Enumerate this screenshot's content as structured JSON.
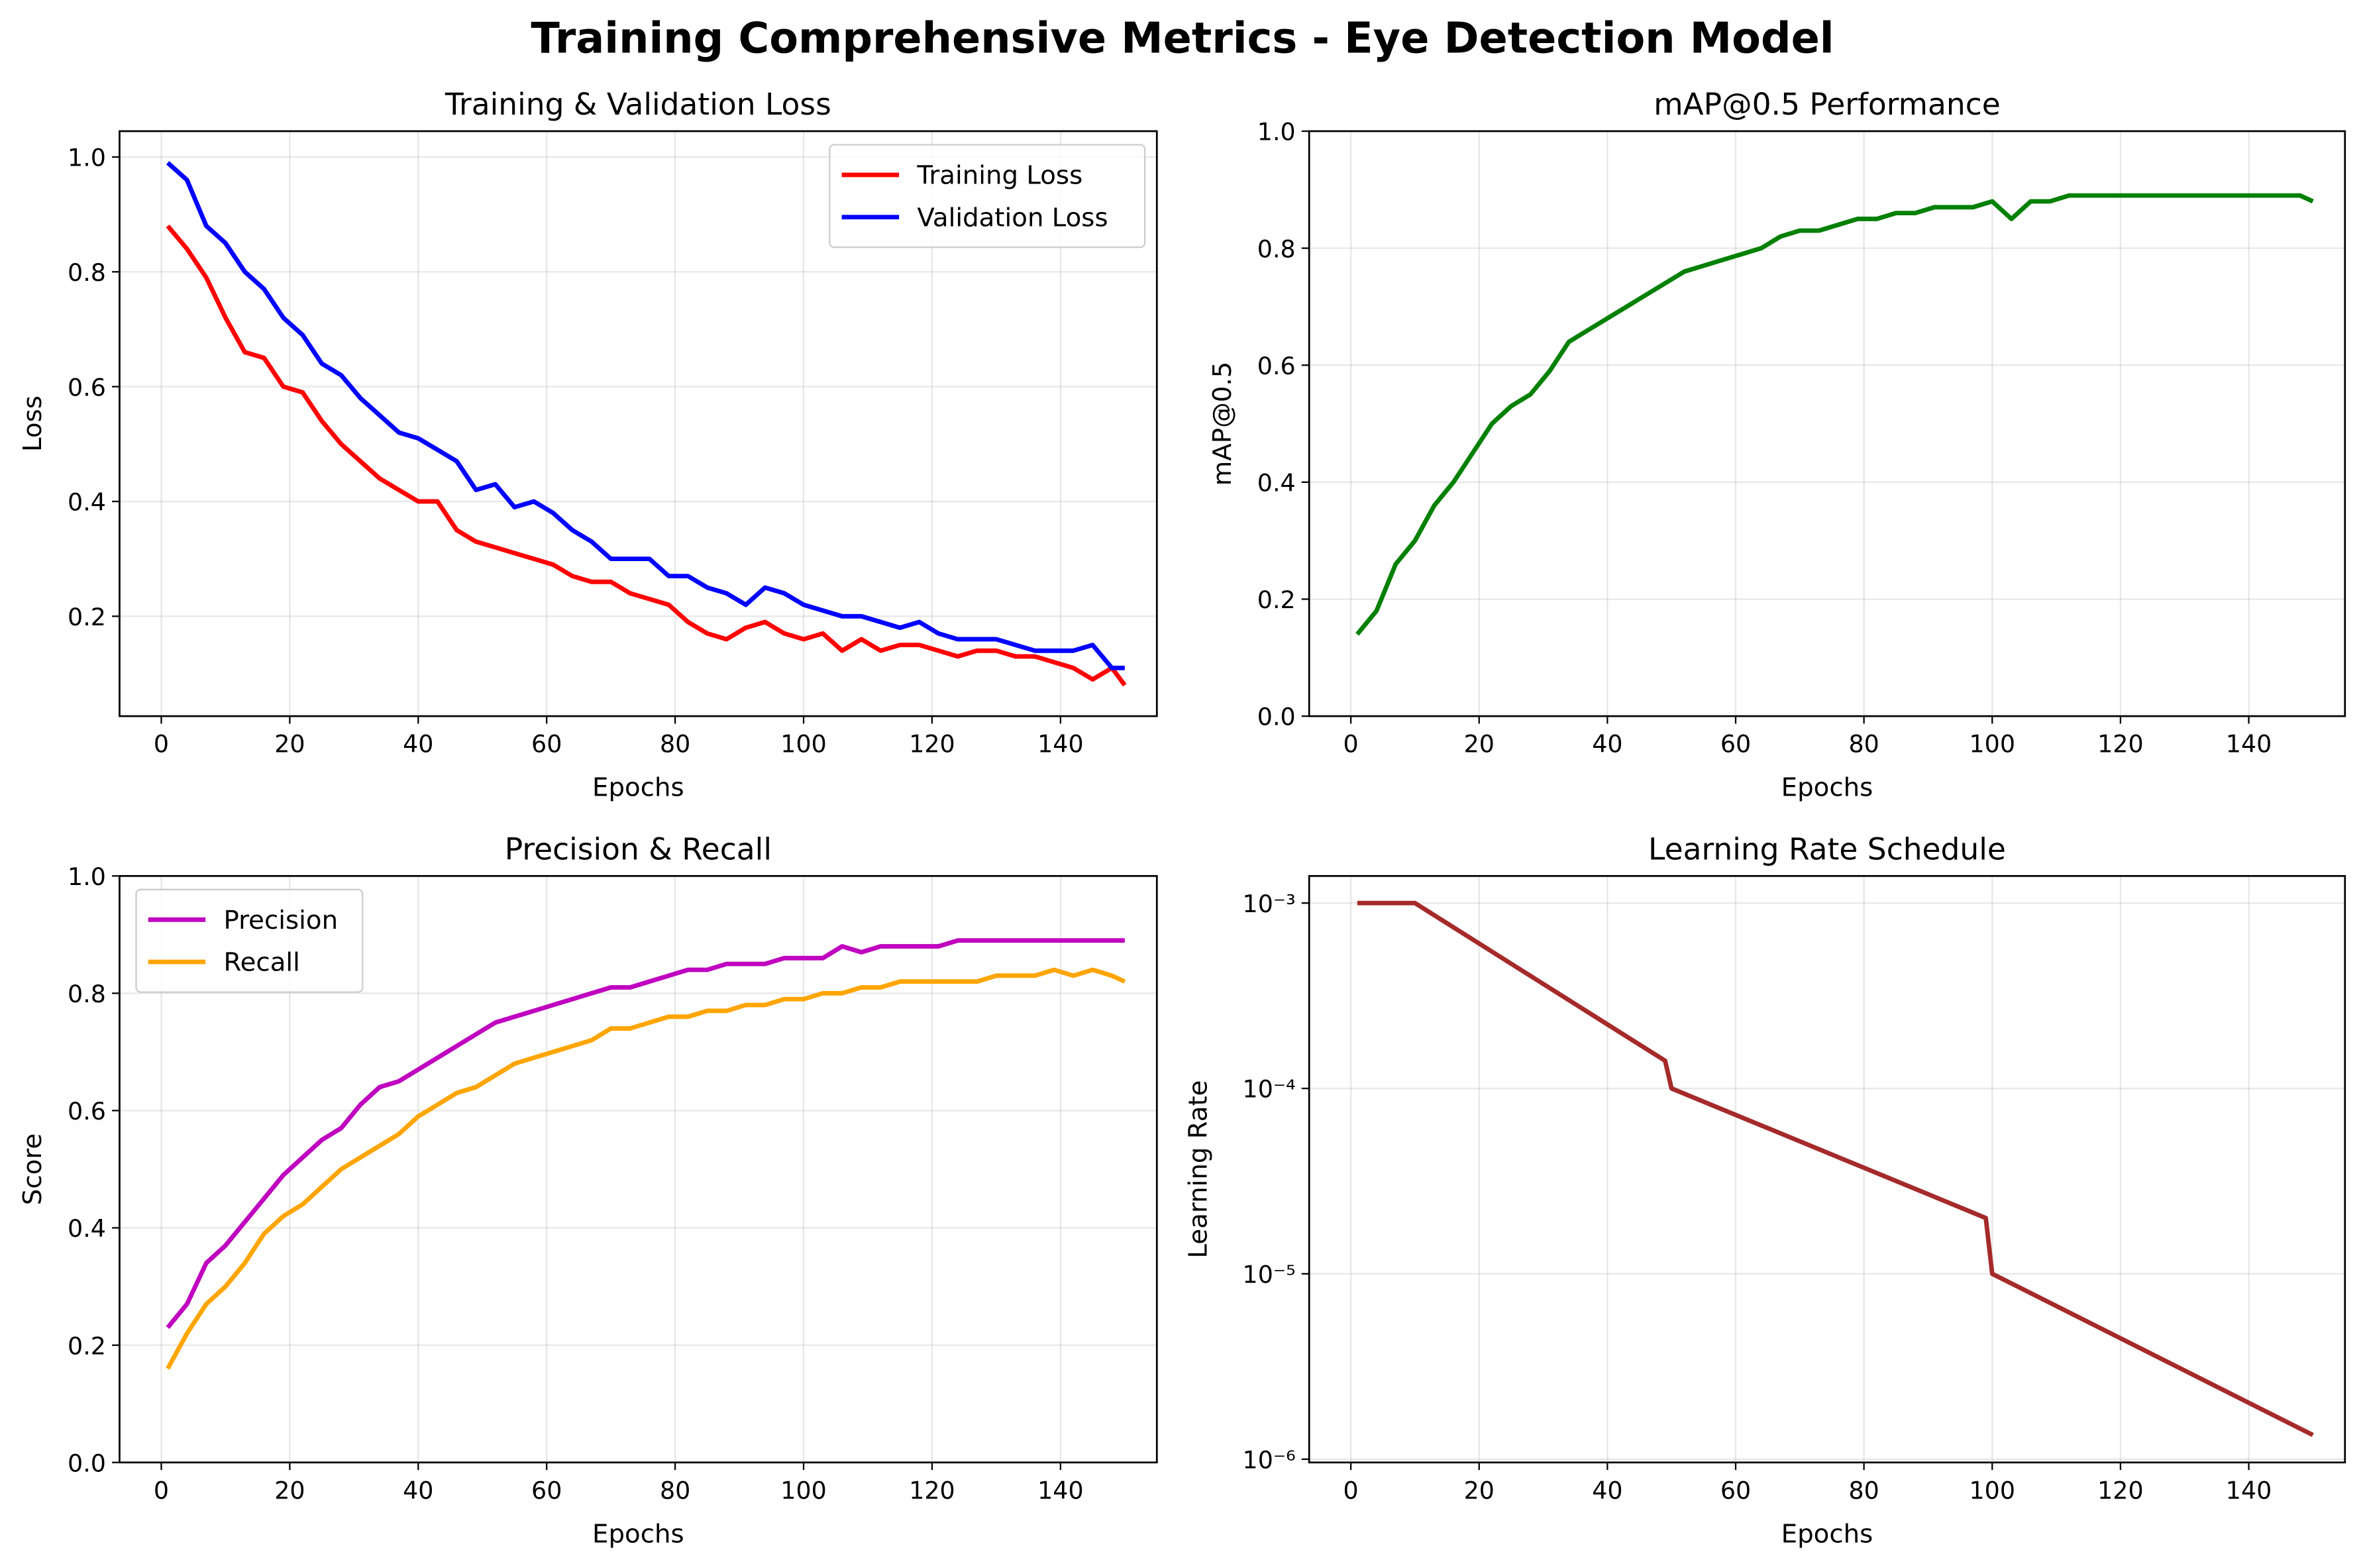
{
  "title": "Training Comprehensive Metrics - Eye Detection Model",
  "chart_data": [
    {
      "type": "line",
      "title": "Training & Validation Loss",
      "xlabel": "Epochs",
      "ylabel": "Loss",
      "x": [
        1,
        4,
        7,
        10,
        13,
        16,
        19,
        22,
        25,
        28,
        31,
        34,
        37,
        40,
        43,
        46,
        49,
        52,
        55,
        58,
        61,
        64,
        67,
        70,
        73,
        76,
        79,
        82,
        85,
        88,
        91,
        94,
        97,
        100,
        103,
        106,
        109,
        112,
        115,
        118,
        121,
        124,
        127,
        130,
        133,
        136,
        139,
        142,
        145,
        148,
        150
      ],
      "series": [
        {
          "name": "Training Loss",
          "color": "#ff0000",
          "values": [
            0.88,
            0.84,
            0.79,
            0.72,
            0.66,
            0.65,
            0.6,
            0.59,
            0.54,
            0.5,
            0.47,
            0.44,
            0.42,
            0.4,
            0.4,
            0.35,
            0.33,
            0.32,
            0.31,
            0.3,
            0.29,
            0.27,
            0.26,
            0.26,
            0.24,
            0.23,
            0.22,
            0.19,
            0.17,
            0.16,
            0.18,
            0.19,
            0.17,
            0.16,
            0.17,
            0.14,
            0.16,
            0.14,
            0.15,
            0.15,
            0.14,
            0.13,
            0.14,
            0.14,
            0.13,
            0.13,
            0.12,
            0.11,
            0.09,
            0.11,
            0.08
          ]
        },
        {
          "name": "Validation Loss",
          "color": "#0000ff",
          "values": [
            0.99,
            0.96,
            0.88,
            0.85,
            0.8,
            0.77,
            0.72,
            0.69,
            0.64,
            0.62,
            0.58,
            0.55,
            0.52,
            0.51,
            0.49,
            0.47,
            0.42,
            0.43,
            0.39,
            0.4,
            0.38,
            0.35,
            0.33,
            0.3,
            0.3,
            0.3,
            0.27,
            0.27,
            0.25,
            0.24,
            0.22,
            0.25,
            0.24,
            0.22,
            0.21,
            0.2,
            0.2,
            0.19,
            0.18,
            0.19,
            0.17,
            0.16,
            0.16,
            0.16,
            0.15,
            0.14,
            0.14,
            0.14,
            0.15,
            0.11,
            0.11
          ]
        }
      ],
      "xlim": [
        -6.5,
        155
      ],
      "ylim": [
        0.026,
        1.045
      ],
      "xticks": [
        0,
        20,
        40,
        60,
        80,
        100,
        120,
        140
      ],
      "yticks": [
        0.2,
        0.4,
        0.6,
        0.8,
        {
          "value": 1,
          "label": "1.0"
        }
      ],
      "grid": true,
      "legend": "upper right"
    },
    {
      "type": "line",
      "title": "mAP@0.5 Performance",
      "xlabel": "Epochs",
      "ylabel": "mAP@0.5",
      "x": [
        1,
        4,
        7,
        10,
        13,
        16,
        19,
        22,
        25,
        28,
        31,
        34,
        37,
        40,
        43,
        46,
        49,
        52,
        55,
        58,
        61,
        64,
        67,
        70,
        73,
        76,
        79,
        82,
        85,
        88,
        91,
        94,
        97,
        100,
        103,
        106,
        109,
        112,
        115,
        118,
        121,
        124,
        127,
        130,
        133,
        136,
        139,
        142,
        145,
        148,
        150
      ],
      "series": [
        {
          "name": "mAP@0.5",
          "color": "#008000",
          "values": [
            0.14,
            0.18,
            0.26,
            0.3,
            0.36,
            0.4,
            0.45,
            0.5,
            0.53,
            0.55,
            0.59,
            0.64,
            0.66,
            0.68,
            0.7,
            0.72,
            0.74,
            0.76,
            0.77,
            0.78,
            0.79,
            0.8,
            0.82,
            0.83,
            0.83,
            0.84,
            0.85,
            0.85,
            0.86,
            0.86,
            0.87,
            0.87,
            0.87,
            0.88,
            0.85,
            0.88,
            0.88,
            0.89,
            0.89,
            0.89,
            0.89,
            0.89,
            0.89,
            0.89,
            0.89,
            0.89,
            0.89,
            0.89,
            0.89,
            0.89,
            0.88
          ]
        }
      ],
      "xlim": [
        -6.5,
        155
      ],
      "ylim": [
        0,
        1
      ],
      "xticks": [
        0,
        20,
        40,
        60,
        80,
        100,
        120,
        140
      ],
      "yticks": [
        {
          "value": 0,
          "label": "0.0"
        },
        0.2,
        0.4,
        0.6,
        0.8,
        {
          "value": 1,
          "label": "1.0"
        }
      ],
      "grid": true
    },
    {
      "type": "line",
      "title": "Precision & Recall",
      "xlabel": "Epochs",
      "ylabel": "Score",
      "x": [
        1,
        4,
        7,
        10,
        13,
        16,
        19,
        22,
        25,
        28,
        31,
        34,
        37,
        40,
        43,
        46,
        49,
        52,
        55,
        58,
        61,
        64,
        67,
        70,
        73,
        76,
        79,
        82,
        85,
        88,
        91,
        94,
        97,
        100,
        103,
        106,
        109,
        112,
        115,
        118,
        121,
        124,
        127,
        130,
        133,
        136,
        139,
        142,
        145,
        148,
        150
      ],
      "series": [
        {
          "name": "Precision",
          "color": "#bf00bf",
          "values": [
            0.23,
            0.27,
            0.34,
            0.37,
            0.41,
            0.45,
            0.49,
            0.52,
            0.55,
            0.57,
            0.61,
            0.64,
            0.65,
            0.67,
            0.69,
            0.71,
            0.73,
            0.75,
            0.76,
            0.77,
            0.78,
            0.79,
            0.8,
            0.81,
            0.81,
            0.82,
            0.83,
            0.84,
            0.84,
            0.85,
            0.85,
            0.85,
            0.86,
            0.86,
            0.86,
            0.88,
            0.87,
            0.88,
            0.88,
            0.88,
            0.88,
            0.89,
            0.89,
            0.89,
            0.89,
            0.89,
            0.89,
            0.89,
            0.89,
            0.89,
            0.89
          ]
        },
        {
          "name": "Recall",
          "color": "#ffa500",
          "values": [
            0.16,
            0.22,
            0.27,
            0.3,
            0.34,
            0.39,
            0.42,
            0.44,
            0.47,
            0.5,
            0.52,
            0.54,
            0.56,
            0.59,
            0.61,
            0.63,
            0.64,
            0.66,
            0.68,
            0.69,
            0.7,
            0.71,
            0.72,
            0.74,
            0.74,
            0.75,
            0.76,
            0.76,
            0.77,
            0.77,
            0.78,
            0.78,
            0.79,
            0.79,
            0.8,
            0.8,
            0.81,
            0.81,
            0.82,
            0.82,
            0.82,
            0.82,
            0.82,
            0.83,
            0.83,
            0.83,
            0.84,
            0.83,
            0.84,
            0.83,
            0.82
          ]
        }
      ],
      "xlim": [
        -6.5,
        155
      ],
      "ylim": [
        0,
        1
      ],
      "xticks": [
        0,
        20,
        40,
        60,
        80,
        100,
        120,
        140
      ],
      "yticks": [
        {
          "value": 0,
          "label": "0.0"
        },
        0.2,
        0.4,
        0.6,
        0.8,
        {
          "value": 1,
          "label": "1.0"
        }
      ],
      "grid": true,
      "legend": "upper left"
    },
    {
      "type": "line",
      "title": "Learning Rate Schedule",
      "xlabel": "Epochs",
      "ylabel": "Learning Rate",
      "x": [
        1,
        10,
        49,
        50,
        99,
        100,
        150
      ],
      "series": [
        {
          "name": "Learning Rate",
          "color": "#a52a2a",
          "values": [
            0.001,
            0.001,
            0.000141,
            0.0001,
            2e-05,
            1e-05,
            1.35e-06
          ]
        }
      ],
      "xlim": [
        -6.5,
        155
      ],
      "ylim": [
        9.6e-07,
        0.0014
      ],
      "yscale": "log",
      "xticks": [
        0,
        20,
        40,
        60,
        80,
        100,
        120,
        140
      ],
      "yticks": [
        {
          "value": 1e-06,
          "label": "10⁻⁶"
        },
        {
          "value": 1e-05,
          "label": "10⁻⁵"
        },
        {
          "value": 0.0001,
          "label": "10⁻⁴"
        },
        {
          "value": 0.001,
          "label": "10⁻³"
        }
      ],
      "grid": true
    }
  ]
}
